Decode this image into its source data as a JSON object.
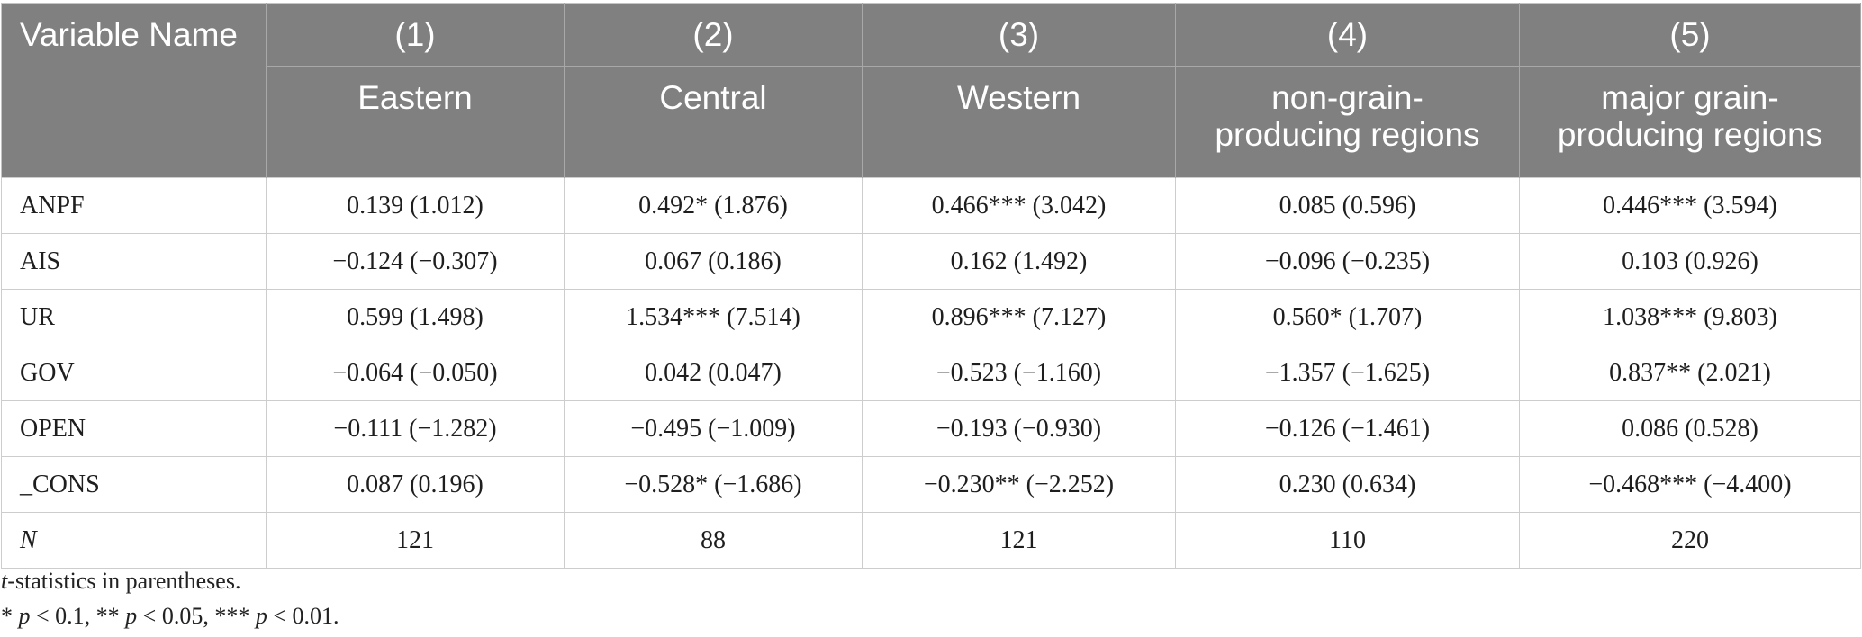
{
  "table": {
    "header": {
      "variable_label": "Variable Name",
      "columns": [
        {
          "number": "(1)",
          "name": "Eastern"
        },
        {
          "number": "(2)",
          "name": "Central"
        },
        {
          "number": "(3)",
          "name": "Western"
        },
        {
          "number": "(4)",
          "name": "non-grain-producing regions"
        },
        {
          "number": "(5)",
          "name": "major grain-producing regions"
        }
      ]
    },
    "rows": [
      {
        "variable": "ANPF",
        "values": [
          "0.139 (1.012)",
          "0.492* (1.876)",
          "0.466*** (3.042)",
          "0.085 (0.596)",
          "0.446*** (3.594)"
        ]
      },
      {
        "variable": "AIS",
        "values": [
          "−0.124 (−0.307)",
          "0.067 (0.186)",
          "0.162 (1.492)",
          "−0.096 (−0.235)",
          "0.103 (0.926)"
        ]
      },
      {
        "variable": "UR",
        "values": [
          "0.599 (1.498)",
          "1.534*** (7.514)",
          "0.896*** (7.127)",
          "0.560* (1.707)",
          "1.038*** (9.803)"
        ]
      },
      {
        "variable": "GOV",
        "values": [
          "−0.064 (−0.050)",
          "0.042 (0.047)",
          "−0.523 (−1.160)",
          "−1.357 (−1.625)",
          "0.837** (2.021)"
        ]
      },
      {
        "variable": "OPEN",
        "values": [
          "−0.111 (−1.282)",
          "−0.495 (−1.009)",
          "−0.193 (−0.930)",
          "−0.126 (−1.461)",
          "0.086 (0.528)"
        ]
      },
      {
        "variable": "_CONS",
        "values": [
          "0.087 (0.196)",
          "−0.528* (−1.686)",
          "−0.230** (−2.252)",
          "0.230 (0.634)",
          "−0.468*** (−4.400)"
        ]
      },
      {
        "variable": "N",
        "values": [
          "121",
          "88",
          "121",
          "110",
          "220"
        ]
      }
    ]
  },
  "footnotes": {
    "line1": [
      "t",
      "-statistics in parentheses."
    ],
    "line2": [
      "* ",
      "p",
      " < 0.1, ** ",
      "p",
      " < 0.05, *** ",
      "p",
      " < 0.01."
    ]
  },
  "colors": {
    "header_bg": "#808080",
    "header_text": "#ffffff",
    "border": "#cdcdcd"
  }
}
